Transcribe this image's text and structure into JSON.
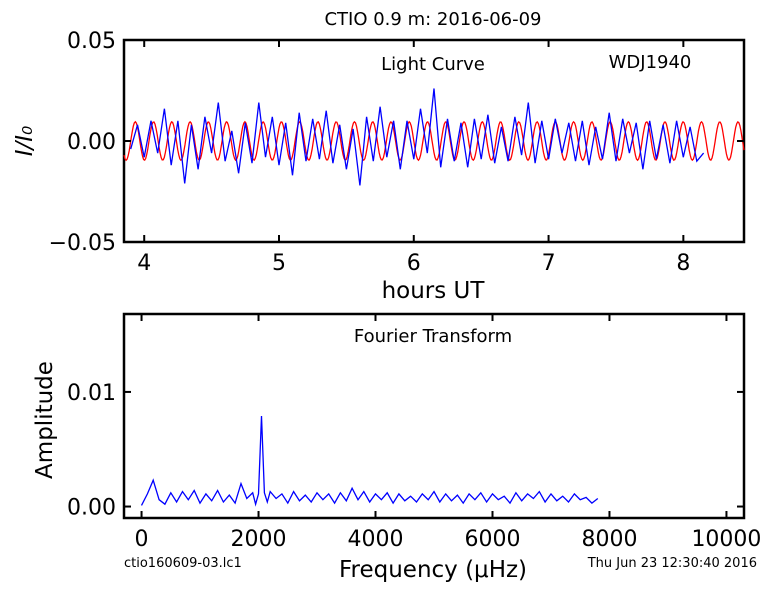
{
  "figure": {
    "title": "CTIO 0.9 m:  2016-06-09",
    "footer_left": "ctio160609-03.lc1",
    "footer_right": "Thu Jun 23 12:30:40 2016"
  },
  "chart_data": [
    {
      "type": "line",
      "title": "CTIO 0.9 m:  2016-06-09",
      "xlabel": "hours UT",
      "ylabel": "I/I₀",
      "xlim": [
        3.85,
        8.45
      ],
      "ylim": [
        -0.05,
        0.05
      ],
      "x_ticks": [
        4,
        5,
        6,
        7,
        8
      ],
      "x_tick_labels": [
        "4",
        "5",
        "6",
        "7",
        "8"
      ],
      "y_ticks": [
        -0.05,
        0.0,
        0.05
      ],
      "y_tick_labels": [
        "−0.05",
        "0.00",
        "0.05"
      ],
      "annotations": [
        "Light Curve",
        "WDJ1940"
      ],
      "grid": false,
      "series": [
        {
          "color": "#0000ff",
          "description_free": true,
          "x": [
            3.9,
            3.95,
            4.0,
            4.05,
            4.1,
            4.15,
            4.2,
            4.25,
            4.3,
            4.35,
            4.4,
            4.45,
            4.5,
            4.55,
            4.6,
            4.65,
            4.7,
            4.75,
            4.8,
            4.85,
            4.9,
            4.95,
            5.0,
            5.05,
            5.1,
            5.15,
            5.2,
            5.25,
            5.3,
            5.35,
            5.4,
            5.45,
            5.5,
            5.55,
            5.6,
            5.65,
            5.7,
            5.75,
            5.8,
            5.85,
            5.9,
            5.95,
            6.0,
            6.05,
            6.1,
            6.15,
            6.2,
            6.25,
            6.3,
            6.35,
            6.4,
            6.45,
            6.5,
            6.55,
            6.6,
            6.65,
            6.7,
            6.75,
            6.8,
            6.85,
            6.9,
            6.95,
            7.0,
            7.05,
            7.1,
            7.15,
            7.2,
            7.25,
            7.3,
            7.35,
            7.4,
            7.45,
            7.5,
            7.55,
            7.6,
            7.65,
            7.7,
            7.75,
            7.8,
            7.85,
            7.9,
            7.95,
            8.0,
            8.05,
            8.1,
            8.15
          ],
          "y": [
            -0.004,
            0.008,
            -0.008,
            0.01,
            -0.006,
            0.016,
            -0.012,
            0.01,
            -0.021,
            0.008,
            -0.014,
            0.012,
            -0.006,
            0.019,
            -0.01,
            0.005,
            -0.016,
            0.009,
            -0.011,
            0.019,
            -0.008,
            0.012,
            -0.012,
            0.009,
            -0.017,
            0.014,
            -0.01,
            0.011,
            -0.009,
            0.015,
            -0.011,
            0.008,
            -0.014,
            0.006,
            -0.022,
            0.012,
            -0.01,
            0.017,
            -0.008,
            0.01,
            -0.014,
            0.01,
            -0.009,
            0.016,
            -0.006,
            0.026,
            -0.013,
            0.011,
            -0.01,
            0.009,
            -0.013,
            0.011,
            -0.009,
            0.013,
            -0.011,
            0.007,
            -0.01,
            0.012,
            -0.007,
            0.019,
            -0.011,
            0.01,
            -0.009,
            0.011,
            -0.006,
            0.009,
            -0.01,
            0.01,
            -0.012,
            0.007,
            -0.009,
            0.014,
            -0.01,
            0.011,
            -0.006,
            0.009,
            -0.014,
            0.01,
            -0.009,
            0.008,
            -0.011,
            0.01,
            -0.008,
            0.007,
            -0.01,
            -0.006
          ]
        },
        {
          "color": "#ff0000",
          "amplitude": 0.0095,
          "frequency_uHz": 2050,
          "phase_offset_hours": 3.9,
          "x_range": [
            3.85,
            8.45
          ]
        }
      ]
    },
    {
      "type": "line",
      "title": "Fourier Transform",
      "xlabel": "Frequency (μHz)",
      "ylabel": "Amplitude",
      "xlim": [
        -300,
        10300
      ],
      "ylim": [
        -0.001,
        0.0168
      ],
      "x_ticks": [
        0,
        2000,
        4000,
        6000,
        8000,
        10000
      ],
      "x_tick_labels": [
        "0",
        "2000",
        "4000",
        "6000",
        "8000",
        "10000"
      ],
      "y_ticks": [
        0.0,
        0.01
      ],
      "y_tick_labels": [
        "0.00",
        "0.01"
      ],
      "annotations": [
        "Fourier Transform"
      ],
      "grid": false,
      "series": [
        {
          "color": "#0000ff",
          "x": [
            0,
            100,
            200,
            300,
            400,
            500,
            600,
            700,
            800,
            900,
            1000,
            1100,
            1200,
            1300,
            1400,
            1500,
            1600,
            1700,
            1800,
            1900,
            1950,
            2000,
            2050,
            2100,
            2150,
            2200,
            2300,
            2400,
            2500,
            2600,
            2700,
            2800,
            2900,
            3000,
            3100,
            3200,
            3300,
            3400,
            3500,
            3600,
            3700,
            3800,
            3900,
            4000,
            4100,
            4200,
            4300,
            4400,
            4500,
            4600,
            4700,
            4800,
            4900,
            5000,
            5100,
            5200,
            5300,
            5400,
            5500,
            5600,
            5700,
            5800,
            5900,
            6000,
            6100,
            6200,
            6300,
            6400,
            6500,
            6600,
            6700,
            6800,
            6900,
            7000,
            7100,
            7200,
            7300,
            7400,
            7500,
            7600,
            7700,
            7800
          ],
          "y": [
            0.0001,
            0.0011,
            0.0023,
            0.0006,
            0.0002,
            0.0012,
            0.0004,
            0.0013,
            0.0006,
            0.0014,
            0.0003,
            0.0011,
            0.0005,
            0.0014,
            0.0004,
            0.001,
            0.0003,
            0.002,
            0.0007,
            0.0012,
            0.0002,
            0.0011,
            0.0079,
            0.0012,
            0.0004,
            0.0013,
            0.0007,
            0.0011,
            0.0003,
            0.0013,
            0.0005,
            0.001,
            0.0004,
            0.0012,
            0.0006,
            0.0011,
            0.0003,
            0.0012,
            0.0005,
            0.0016,
            0.0006,
            0.0013,
            0.0004,
            0.0011,
            0.0006,
            0.0012,
            0.0003,
            0.0011,
            0.0005,
            0.0009,
            0.0004,
            0.0011,
            0.0006,
            0.0013,
            0.0004,
            0.0011,
            0.0005,
            0.001,
            0.0003,
            0.0011,
            0.0006,
            0.0012,
            0.0004,
            0.0011,
            0.0006,
            0.0009,
            0.0003,
            0.0012,
            0.0005,
            0.0011,
            0.0007,
            0.0013,
            0.0004,
            0.0011,
            0.0005,
            0.0009,
            0.0004,
            0.0011,
            0.0006,
            0.0008,
            0.0003,
            0.0007
          ]
        }
      ]
    }
  ]
}
